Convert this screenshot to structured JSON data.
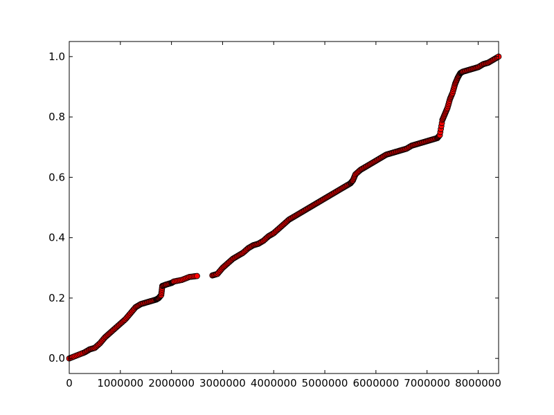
{
  "chart_data": {
    "type": "scatter",
    "title": "",
    "xlabel": "",
    "ylabel": "",
    "xlim": [
      0,
      8400000
    ],
    "ylim": [
      -0.05,
      1.05
    ],
    "x_ticks": [
      0,
      1000000,
      2000000,
      3000000,
      4000000,
      5000000,
      6000000,
      7000000,
      8000000
    ],
    "x_tick_labels": [
      "0",
      "1000000",
      "2000000",
      "3000000",
      "4000000",
      "5000000",
      "6000000",
      "7000000",
      "8000000"
    ],
    "y_ticks": [
      0.0,
      0.2,
      0.4,
      0.6,
      0.8,
      1.0
    ],
    "y_tick_labels": [
      "0.0",
      "0.2",
      "0.4",
      "0.6",
      "0.8",
      "1.0"
    ],
    "grid": false,
    "marker_face_color": "#ff0000",
    "marker_edge_color": "#000000",
    "series": [
      {
        "points": [
          [
            0,
            0.0
          ],
          [
            150000,
            0.01
          ],
          [
            300000,
            0.02
          ],
          [
            400000,
            0.03
          ],
          [
            500000,
            0.035
          ],
          [
            600000,
            0.05
          ],
          [
            700000,
            0.07
          ],
          [
            800000,
            0.085
          ],
          [
            900000,
            0.1
          ],
          [
            1000000,
            0.115
          ],
          [
            1100000,
            0.13
          ],
          [
            1200000,
            0.15
          ],
          [
            1300000,
            0.17
          ],
          [
            1400000,
            0.18
          ],
          [
            1500000,
            0.185
          ],
          [
            1600000,
            0.19
          ],
          [
            1700000,
            0.195
          ],
          [
            1750000,
            0.2
          ],
          [
            1800000,
            0.21
          ],
          [
            1820000,
            0.24
          ],
          [
            1900000,
            0.245
          ],
          [
            2000000,
            0.25
          ],
          [
            2050000,
            0.255
          ],
          [
            2200000,
            0.26
          ],
          [
            2350000,
            0.27
          ],
          [
            2500000,
            0.273
          ],
          [
            2800000,
            0.275
          ],
          [
            2900000,
            0.28
          ],
          [
            3000000,
            0.3
          ],
          [
            3100000,
            0.315
          ],
          [
            3200000,
            0.33
          ],
          [
            3300000,
            0.34
          ],
          [
            3400000,
            0.35
          ],
          [
            3500000,
            0.365
          ],
          [
            3600000,
            0.375
          ],
          [
            3700000,
            0.38
          ],
          [
            3800000,
            0.39
          ],
          [
            3900000,
            0.405
          ],
          [
            4000000,
            0.415
          ],
          [
            4100000,
            0.43
          ],
          [
            4200000,
            0.445
          ],
          [
            4300000,
            0.46
          ],
          [
            4400000,
            0.47
          ],
          [
            4500000,
            0.48
          ],
          [
            4600000,
            0.49
          ],
          [
            4700000,
            0.5
          ],
          [
            4800000,
            0.51
          ],
          [
            4900000,
            0.52
          ],
          [
            5000000,
            0.53
          ],
          [
            5100000,
            0.54
          ],
          [
            5200000,
            0.55
          ],
          [
            5300000,
            0.56
          ],
          [
            5400000,
            0.57
          ],
          [
            5500000,
            0.58
          ],
          [
            5550000,
            0.59
          ],
          [
            5600000,
            0.61
          ],
          [
            5700000,
            0.625
          ],
          [
            5800000,
            0.635
          ],
          [
            5900000,
            0.645
          ],
          [
            6000000,
            0.655
          ],
          [
            6100000,
            0.665
          ],
          [
            6200000,
            0.675
          ],
          [
            6300000,
            0.68
          ],
          [
            6400000,
            0.685
          ],
          [
            6500000,
            0.69
          ],
          [
            6600000,
            0.695
          ],
          [
            6700000,
            0.705
          ],
          [
            6800000,
            0.71
          ],
          [
            6900000,
            0.715
          ],
          [
            7000000,
            0.72
          ],
          [
            7100000,
            0.725
          ],
          [
            7200000,
            0.73
          ],
          [
            7250000,
            0.74
          ],
          [
            7300000,
            0.79
          ],
          [
            7350000,
            0.81
          ],
          [
            7400000,
            0.83
          ],
          [
            7450000,
            0.86
          ],
          [
            7500000,
            0.88
          ],
          [
            7550000,
            0.91
          ],
          [
            7600000,
            0.93
          ],
          [
            7650000,
            0.945
          ],
          [
            7700000,
            0.95
          ],
          [
            7800000,
            0.955
          ],
          [
            7900000,
            0.96
          ],
          [
            8000000,
            0.965
          ],
          [
            8100000,
            0.975
          ],
          [
            8200000,
            0.98
          ],
          [
            8300000,
            0.99
          ],
          [
            8400000,
            1.0
          ]
        ]
      }
    ]
  }
}
